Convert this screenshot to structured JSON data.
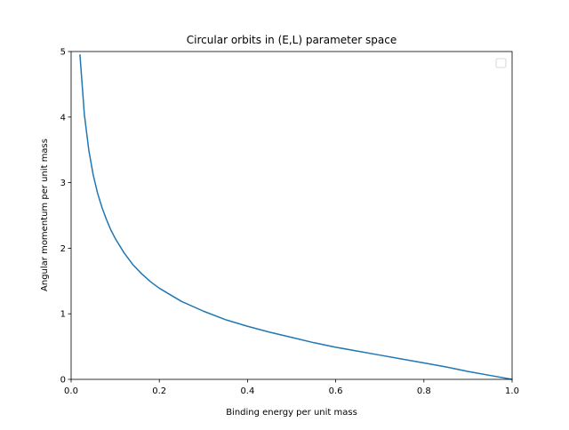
{
  "chart_data": {
    "type": "line",
    "title": "Circular orbits in (E,L) parameter space",
    "xlabel": "Binding energy per unit mass",
    "ylabel": "Angular momentum per unit mass",
    "xlim": [
      0.0,
      1.0
    ],
    "ylim": [
      0,
      5
    ],
    "xticks": [
      "0.0",
      "0.2",
      "0.4",
      "0.6",
      "0.8",
      "1.0"
    ],
    "yticks": [
      "0",
      "1",
      "2",
      "3",
      "4",
      "5"
    ],
    "grid": false,
    "legend": {
      "placement": "top-right",
      "entries": []
    },
    "series": [
      {
        "color": "#1f77b4",
        "x": [
          0.02,
          0.03,
          0.04,
          0.05,
          0.06,
          0.07,
          0.08,
          0.09,
          0.1,
          0.12,
          0.14,
          0.16,
          0.18,
          0.2,
          0.25,
          0.3,
          0.35,
          0.4,
          0.45,
          0.5,
          0.55,
          0.6,
          0.65,
          0.7,
          0.75,
          0.8,
          0.85,
          0.9,
          0.95,
          1.0
        ],
        "y": [
          4.95,
          4.04,
          3.5,
          3.12,
          2.84,
          2.62,
          2.44,
          2.28,
          2.15,
          1.93,
          1.75,
          1.61,
          1.49,
          1.39,
          1.19,
          1.04,
          0.91,
          0.81,
          0.72,
          0.64,
          0.56,
          0.49,
          0.43,
          0.37,
          0.31,
          0.25,
          0.19,
          0.12,
          0.06,
          0.0
        ]
      }
    ]
  }
}
